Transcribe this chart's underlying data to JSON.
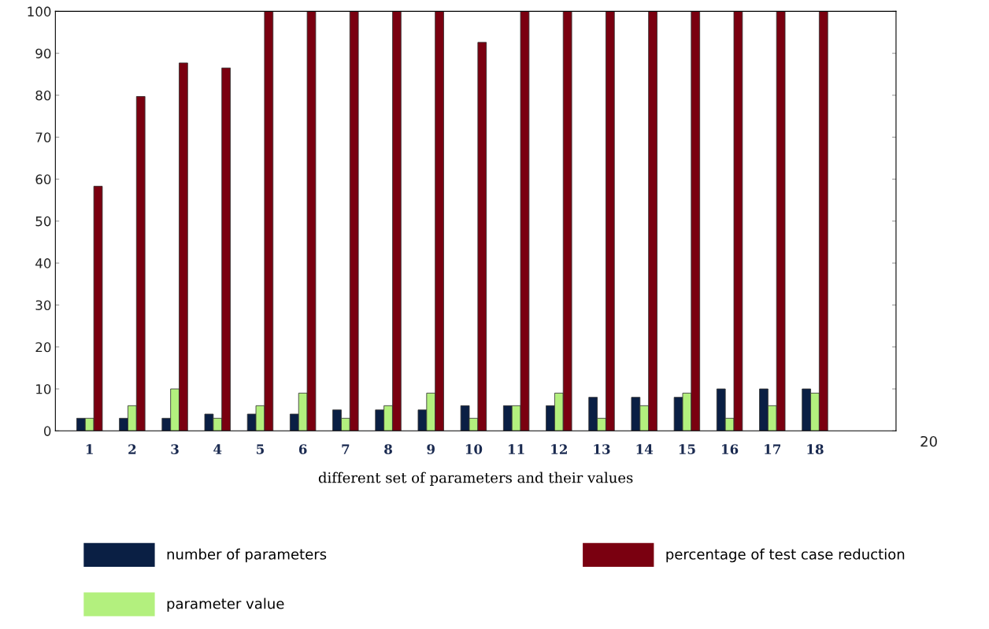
{
  "chart_data": {
    "type": "bar",
    "xlabel": "different set of parameters and their values",
    "categories": [
      "1",
      "2",
      "3",
      "4",
      "5",
      "6",
      "7",
      "8",
      "9",
      "10",
      "11",
      "12",
      "13",
      "14",
      "15",
      "16",
      "17",
      "18"
    ],
    "series": [
      {
        "name": "number of parameters",
        "color": "#0a1f44",
        "values": [
          3,
          3,
          3,
          4,
          4,
          4,
          5,
          5,
          5,
          6,
          6,
          6,
          8,
          8,
          8,
          10,
          10,
          10
        ]
      },
      {
        "name": "parameter value",
        "color": "#b3f07e",
        "values": [
          3,
          6,
          10,
          3,
          6,
          9,
          3,
          6,
          9,
          3,
          6,
          9,
          3,
          6,
          9,
          3,
          6,
          9
        ]
      },
      {
        "name": "percentage of test case reduction",
        "color": "#7a0010",
        "values": [
          58.3,
          79.7,
          87.7,
          86.5,
          100,
          100,
          100,
          100,
          100,
          92.6,
          100,
          100,
          100,
          100,
          100,
          100,
          100,
          100
        ]
      }
    ],
    "ylim": [
      0,
      100
    ],
    "yticks": [
      0,
      10,
      20,
      30,
      40,
      50,
      60,
      70,
      80,
      90,
      100
    ],
    "legend": "bottom",
    "grid": false,
    "annotations": [
      "20"
    ]
  }
}
